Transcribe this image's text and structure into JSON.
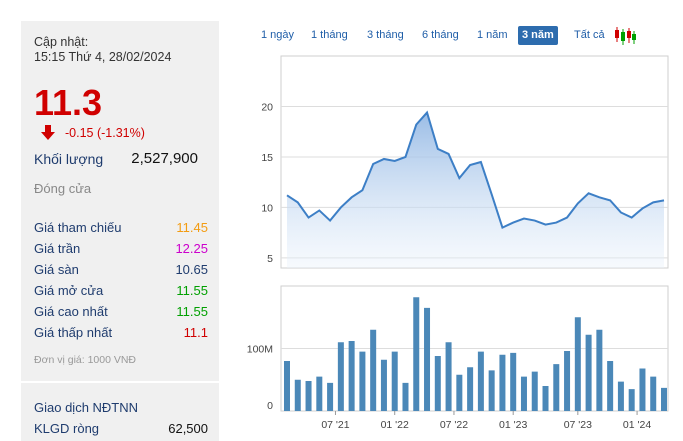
{
  "panel": {
    "updated_label": "Cập nhật:",
    "updated_time": "15:15 Thứ 4, 28/02/2024",
    "price": "11.3",
    "change": "-0.15 (-1.31%)",
    "volume_label": "Khối lượng",
    "volume_value": "2,527,900",
    "close_label": "Đóng cửa",
    "rows": [
      {
        "label": "Giá tham chiếu",
        "value": "11.45",
        "color": "#f39c12"
      },
      {
        "label": "Giá trần",
        "value": "12.25",
        "color": "#cc00cc"
      },
      {
        "label": "Giá sàn",
        "value": "10.65",
        "color": "#1f3c6e"
      },
      {
        "label": "Giá mở cửa",
        "value": "11.55",
        "color": "#00a000"
      },
      {
        "label": "Giá cao nhất",
        "value": "11.55",
        "color": "#00a000"
      },
      {
        "label": "Giá thấp nhất",
        "value": "11.1",
        "color": "#d00000"
      }
    ],
    "unit_note": "Đơn vị giá: 1000 VNĐ",
    "foreign_label": "Giao dịch NĐTNN",
    "net_label": "KLGD ròng",
    "net_value": "62,500"
  },
  "tabs": [
    "1 ngày",
    "1 tháng",
    "3 tháng",
    "6 tháng",
    "1 năm",
    "3 năm",
    "Tất cả"
  ],
  "active_tab": "3 năm",
  "chart_data": [
    {
      "type": "area",
      "y_ticks": [
        5,
        10,
        15,
        20
      ],
      "ylim": [
        4,
        25
      ],
      "values": [
        11.2,
        10.5,
        9.0,
        9.7,
        8.7,
        10.0,
        11.0,
        11.7,
        14.3,
        14.8,
        14.6,
        15.0,
        18.2,
        19.4,
        15.8,
        15.3,
        12.9,
        14.2,
        14.5,
        11.3,
        8.0,
        8.5,
        8.9,
        8.7,
        8.3,
        8.5,
        9.0,
        10.4,
        11.4,
        11.0,
        10.7,
        9.5,
        9.0,
        9.9,
        10.5,
        10.7
      ]
    },
    {
      "type": "bar",
      "y_tick_labels": [
        "0",
        "100M"
      ],
      "y_tick_values": [
        0,
        100
      ],
      "ylim": [
        0,
        200
      ],
      "values": [
        80,
        50,
        48,
        55,
        45,
        110,
        112,
        95,
        130,
        82,
        95,
        45,
        182,
        165,
        88,
        110,
        58,
        70,
        95,
        65,
        90,
        93,
        55,
        63,
        40,
        75,
        96,
        150,
        122,
        130,
        80,
        47,
        35,
        68,
        55,
        37
      ],
      "x_labels": [
        "07 '21",
        "01 '22",
        "07 '22",
        "01 '23",
        "07 '23",
        "01 '24"
      ],
      "x_label_index": [
        4.5,
        10,
        15.5,
        21,
        27,
        32.5
      ]
    }
  ]
}
